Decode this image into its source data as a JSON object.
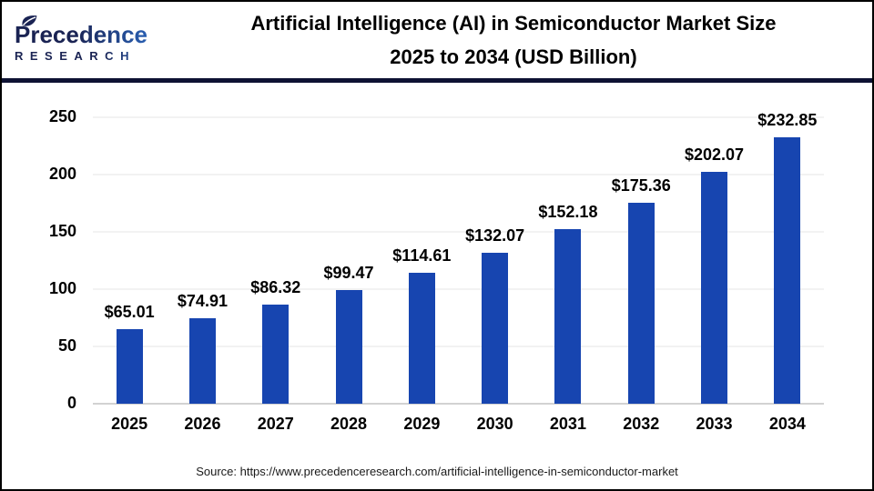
{
  "header": {
    "logo": {
      "brand": "Precedence",
      "sub": "RESEARCH"
    },
    "title_line1": "Artificial Intelligence (AI) in Semiconductor Market Size",
    "title_line2": "2025 to 2034 (USD Billion)"
  },
  "chart_data": {
    "type": "bar",
    "title": "Artificial Intelligence (AI) in Semiconductor Market Size 2025 to 2034 (USD Billion)",
    "categories": [
      "2025",
      "2026",
      "2027",
      "2028",
      "2029",
      "2030",
      "2031",
      "2032",
      "2033",
      "2034"
    ],
    "values": [
      65.01,
      74.91,
      86.32,
      99.47,
      114.61,
      132.07,
      152.18,
      175.36,
      202.07,
      232.85
    ],
    "value_labels": [
      "$65.01",
      "$74.91",
      "$86.32",
      "$99.47",
      "$114.61",
      "$132.07",
      "$152.18",
      "$175.36",
      "$202.07",
      "$232.85"
    ],
    "xlabel": "",
    "ylabel": "",
    "ylim": [
      0,
      250
    ],
    "yticks": [
      0,
      50,
      100,
      150,
      200,
      250
    ],
    "grid": true,
    "legend": "none",
    "bar_color": "#1745B0"
  },
  "footer": {
    "source": "Source: https://www.precedenceresearch.com/artificial-intelligence-in-semiconductor-market"
  },
  "colors": {
    "bar": "#1745B0",
    "grid_line": "#F2F2F2",
    "axis_line": "#D2D2D2",
    "header_separator": "#0E1233",
    "frame_border": "#000000",
    "title_text": "#000000",
    "source_text": "#1A1A1A",
    "logo_dark": "#1A2353",
    "logo_blue": "#2E72D0"
  }
}
